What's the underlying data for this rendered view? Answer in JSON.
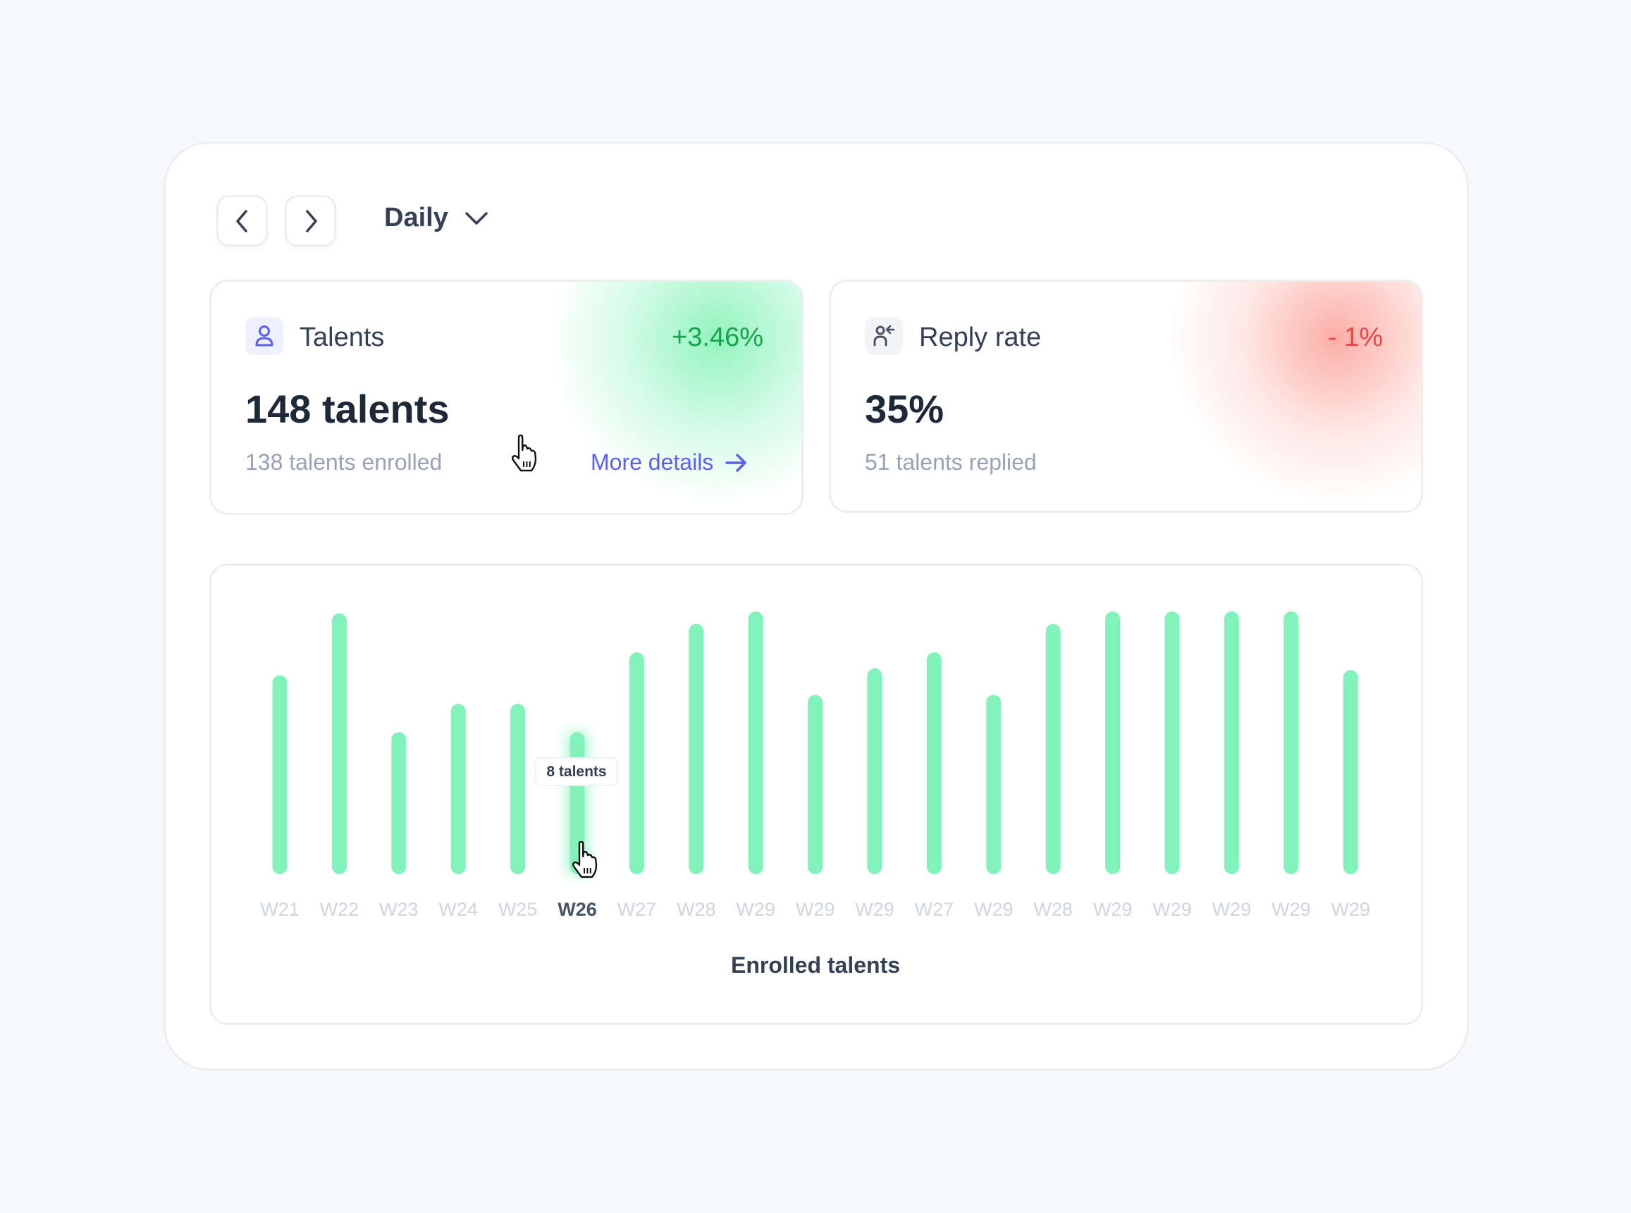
{
  "toolbar": {
    "prev_icon": "chevron-left-icon",
    "next_icon": "chevron-right-icon",
    "period": "Daily",
    "period_icon": "chevron-down-icon"
  },
  "talents_card": {
    "icon": "user-icon",
    "title": "Talents",
    "delta": "+3.46%",
    "value": "148 talents",
    "subtitle": "138 talents enrolled",
    "link": "More details",
    "link_icon": "arrow-right-icon",
    "accent": "#16a34a"
  },
  "reply_card": {
    "icon": "user-reply-icon",
    "title": "Reply rate",
    "delta": "- 1%",
    "value": "35%",
    "subtitle": "51 talents replied",
    "accent": "#ef4444"
  },
  "chart_data": {
    "type": "bar",
    "title": "Enrolled talents",
    "xlabel": "Enrolled talents",
    "ylabel": "",
    "categories": [
      "W21",
      "W22",
      "W23",
      "W24",
      "W25",
      "W26",
      "W27",
      "W28",
      "W29",
      "W29",
      "W29",
      "W27",
      "W29",
      "W28",
      "W29",
      "W29",
      "W29",
      "W29",
      "W29"
    ],
    "values": [
      11.2,
      14.7,
      8,
      9.6,
      9.6,
      8,
      12.5,
      14.1,
      14.8,
      10.1,
      11.6,
      12.5,
      10.1,
      14.1,
      14.8,
      14.8,
      14.8,
      14.8,
      11.5
    ],
    "ylim": [
      0,
      15
    ],
    "grid": false,
    "bar_color": "#80f2ba",
    "highlighted_index": 5,
    "tooltip": "8 talents"
  }
}
